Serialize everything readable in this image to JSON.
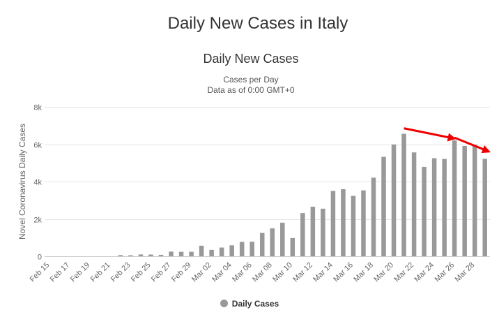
{
  "page": {
    "title": "Daily New Cases in Italy"
  },
  "chart_data": {
    "type": "bar",
    "title": "Daily New Cases",
    "subtitle_lines": [
      "Cases per Day",
      "Data as of 0:00 GMT+0"
    ],
    "ylabel": "Novel Coronavirus Daily Cases",
    "xlabel": "",
    "ylim": [
      0,
      8000
    ],
    "yticks": [
      0,
      2000,
      4000,
      6000,
      8000
    ],
    "ytick_labels": [
      "0",
      "2k",
      "4k",
      "6k",
      "8k"
    ],
    "categories": [
      "Feb 15",
      "Feb 16",
      "Feb 17",
      "Feb 18",
      "Feb 19",
      "Feb 20",
      "Feb 21",
      "Feb 22",
      "Feb 23",
      "Feb 24",
      "Feb 25",
      "Feb 26",
      "Feb 27",
      "Feb 28",
      "Feb 29",
      "Mar 01",
      "Mar 02",
      "Mar 03",
      "Mar 04",
      "Mar 05",
      "Mar 06",
      "Mar 07",
      "Mar 08",
      "Mar 09",
      "Mar 10",
      "Mar 11",
      "Mar 12",
      "Mar 13",
      "Mar 14",
      "Mar 15",
      "Mar 16",
      "Mar 17",
      "Mar 18",
      "Mar 19",
      "Mar 20",
      "Mar 21",
      "Mar 22",
      "Mar 23",
      "Mar 24",
      "Mar 25",
      "Mar 26",
      "Mar 27",
      "Mar 28",
      "Mar 29"
    ],
    "xtick_labels": [
      "Feb 15",
      "",
      "Feb 17",
      "",
      "Feb 19",
      "",
      "Feb 21",
      "",
      "Feb 23",
      "",
      "Feb 25",
      "",
      "Feb 27",
      "",
      "Feb 29",
      "",
      "Mar 02",
      "",
      "Mar 04",
      "",
      "Mar 06",
      "",
      "Mar 08",
      "",
      "Mar 10",
      "",
      "Mar 12",
      "",
      "Mar 14",
      "",
      "Mar 16",
      "",
      "Mar 18",
      "",
      "Mar 20",
      "",
      "Mar 22",
      "",
      "Mar 24",
      "",
      "Mar 26",
      "",
      "Mar 28",
      ""
    ],
    "series": [
      {
        "name": "Daily Cases",
        "color": "#999999",
        "values": [
          0,
          0,
          0,
          0,
          0,
          0,
          0,
          62,
          53,
          97,
          93,
          78,
          250,
          238,
          240,
          566,
          342,
          466,
          587,
          769,
          778,
          1247,
          1492,
          1797,
          977,
          2313,
          2651,
          2547,
          3497,
          3590,
          3233,
          3526,
          4207,
          5322,
          5986,
          6557,
          5560,
          4789,
          5249,
          5210,
          6203,
          5909,
          5974,
          5217
        ]
      }
    ],
    "grid": true,
    "legend": {
      "position": "bottom-center"
    },
    "annotations": [
      {
        "type": "arrow",
        "color": "#ee0000",
        "from": {
          "x": "Mar 21",
          "y": 6850
        },
        "to": {
          "x": "Mar 26",
          "y": 6300
        }
      },
      {
        "type": "arrow",
        "color": "#ee0000",
        "from": {
          "x": "Mar 26",
          "y": 6350
        },
        "to": {
          "x": "Mar 29",
          "y": 5600
        }
      }
    ]
  }
}
